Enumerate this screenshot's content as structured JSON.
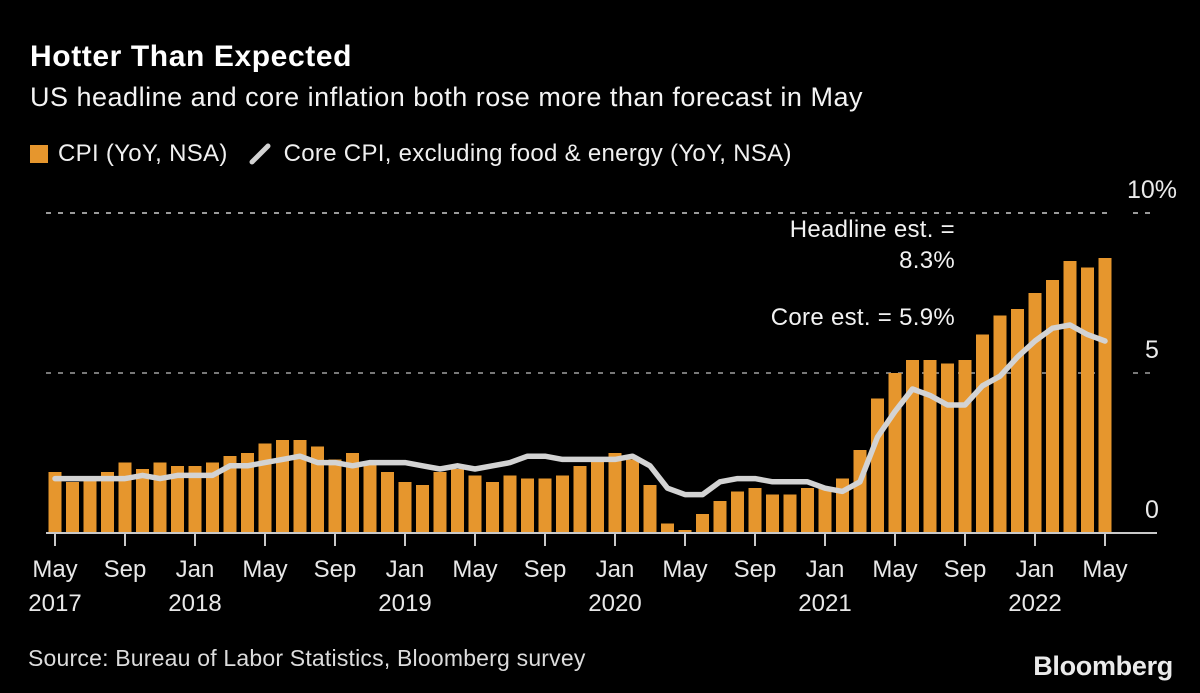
{
  "header": {
    "title": "Hotter Than Expected",
    "subtitle": "US headline and core inflation both rose more than forecast in May"
  },
  "footer": {
    "source": "Source: Bureau of Labor Statistics, Bloomberg survey",
    "logo": "Bloomberg"
  },
  "chart_data": {
    "type": "bar",
    "title": "Hotter Than Expected",
    "subtitle": "US headline and core inflation both rose more than forecast in May",
    "xlabel": "",
    "ylabel": "",
    "ylim": [
      0,
      10
    ],
    "grid": "dotted horizontal lines at 5 and 10",
    "legend_position": "top-left",
    "categories": [
      "May 2017",
      "Jun 2017",
      "Jul 2017",
      "Aug 2017",
      "Sep 2017",
      "Oct 2017",
      "Nov 2017",
      "Dec 2017",
      "Jan 2018",
      "Feb 2018",
      "Mar 2018",
      "Apr 2018",
      "May 2018",
      "Jun 2018",
      "Jul 2018",
      "Aug 2018",
      "Sep 2018",
      "Oct 2018",
      "Nov 2018",
      "Dec 2018",
      "Jan 2019",
      "Feb 2019",
      "Mar 2019",
      "Apr 2019",
      "May 2019",
      "Jun 2019",
      "Jul 2019",
      "Aug 2019",
      "Sep 2019",
      "Oct 2019",
      "Nov 2019",
      "Dec 2019",
      "Jan 2020",
      "Feb 2020",
      "Mar 2020",
      "Apr 2020",
      "May 2020",
      "Jun 2020",
      "Jul 2020",
      "Aug 2020",
      "Sep 2020",
      "Oct 2020",
      "Nov 2020",
      "Dec 2020",
      "Jan 2021",
      "Feb 2021",
      "Mar 2021",
      "Apr 2021",
      "May 2021",
      "Jun 2021",
      "Jul 2021",
      "Aug 2021",
      "Sep 2021",
      "Oct 2021",
      "Nov 2021",
      "Dec 2021",
      "Jan 2022",
      "Feb 2022",
      "Mar 2022",
      "Apr 2022",
      "May 2022"
    ],
    "series": [
      {
        "name": "CPI (YoY, NSA)",
        "type": "bar",
        "color": "#E6962D",
        "values": [
          1.9,
          1.6,
          1.7,
          1.9,
          2.2,
          2.0,
          2.2,
          2.1,
          2.1,
          2.2,
          2.4,
          2.5,
          2.8,
          2.9,
          2.9,
          2.7,
          2.3,
          2.5,
          2.2,
          1.9,
          1.6,
          1.5,
          1.9,
          2.0,
          1.8,
          1.6,
          1.8,
          1.7,
          1.7,
          1.8,
          2.1,
          2.3,
          2.5,
          2.3,
          1.5,
          0.3,
          0.1,
          0.6,
          1.0,
          1.3,
          1.4,
          1.2,
          1.2,
          1.4,
          1.4,
          1.7,
          2.6,
          4.2,
          5.0,
          5.4,
          5.4,
          5.3,
          5.4,
          6.2,
          6.8,
          7.0,
          7.5,
          7.9,
          8.5,
          8.3,
          8.6
        ]
      },
      {
        "name": "Core CPI, excluding food & energy (YoY, NSA)",
        "type": "line",
        "color": "#D3D3D3",
        "values": [
          1.7,
          1.7,
          1.7,
          1.7,
          1.7,
          1.8,
          1.7,
          1.8,
          1.8,
          1.8,
          2.1,
          2.1,
          2.2,
          2.3,
          2.4,
          2.2,
          2.2,
          2.1,
          2.2,
          2.2,
          2.2,
          2.1,
          2.0,
          2.1,
          2.0,
          2.1,
          2.2,
          2.4,
          2.4,
          2.3,
          2.3,
          2.3,
          2.3,
          2.4,
          2.1,
          1.4,
          1.2,
          1.2,
          1.6,
          1.7,
          1.7,
          1.6,
          1.6,
          1.6,
          1.4,
          1.3,
          1.6,
          3.0,
          3.8,
          4.5,
          4.3,
          4.0,
          4.0,
          4.6,
          4.9,
          5.5,
          6.0,
          6.4,
          6.5,
          6.2,
          6.0
        ]
      }
    ],
    "yticks": [
      {
        "value": 0,
        "label": "0"
      },
      {
        "value": 5,
        "label": "5"
      },
      {
        "value": 10,
        "label": "10%"
      }
    ],
    "xticks": [
      {
        "i": 0,
        "m": "May",
        "y": "2017"
      },
      {
        "i": 4,
        "m": "Sep"
      },
      {
        "i": 8,
        "m": "Jan",
        "y": "2018"
      },
      {
        "i": 12,
        "m": "May"
      },
      {
        "i": 16,
        "m": "Sep"
      },
      {
        "i": 20,
        "m": "Jan",
        "y": "2019"
      },
      {
        "i": 24,
        "m": "May"
      },
      {
        "i": 28,
        "m": "Sep"
      },
      {
        "i": 32,
        "m": "Jan",
        "y": "2020"
      },
      {
        "i": 36,
        "m": "May"
      },
      {
        "i": 40,
        "m": "Sep"
      },
      {
        "i": 44,
        "m": "Jan",
        "y": "2021"
      },
      {
        "i": 48,
        "m": "May"
      },
      {
        "i": 52,
        "m": "Sep"
      },
      {
        "i": 56,
        "m": "Jan",
        "y": "2022"
      },
      {
        "i": 60,
        "m": "May"
      }
    ],
    "annotations": {
      "headline": {
        "text_line1": "Headline est. =",
        "text_line2": "8.3%"
      },
      "core": {
        "text": "Core est. = 5.9%"
      }
    }
  }
}
